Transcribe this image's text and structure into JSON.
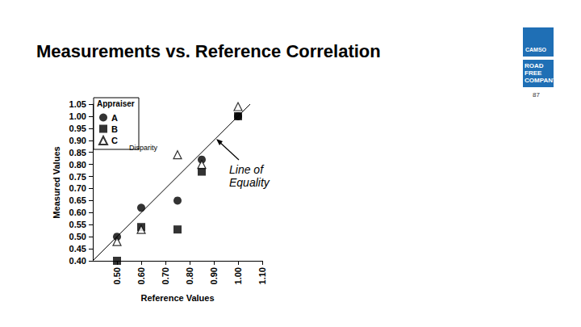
{
  "slide": {
    "title": "Measurements vs. Reference Correlation",
    "page": "87",
    "logo_texts": [
      "CAMSO",
      "ROAD FREE COMPANY"
    ]
  },
  "chart_data": {
    "type": "scatter",
    "x_label": "Reference Values",
    "y_label": "Measured Values",
    "legend_title": "Appraiser",
    "legend": "upper left",
    "grid": false,
    "x": [
      0.5,
      0.6,
      0.75,
      0.85,
      1.0
    ],
    "series": [
      {
        "name": "A",
        "color": "#000000",
        "marker": "circle",
        "values": [
          0.5,
          0.62,
          0.65,
          0.82,
          1.0
        ]
      },
      {
        "name": "B",
        "color": "#000000",
        "marker": "square",
        "values": [
          0.4,
          0.54,
          0.53,
          0.77,
          1.0
        ]
      },
      {
        "name": "C",
        "color": "#000000",
        "marker": "triangle-open",
        "values": [
          0.48,
          0.53,
          0.84,
          0.8,
          1.04
        ]
      }
    ],
    "annotations": [
      {
        "text": "Disparity"
      },
      {
        "text": "Line of\nEquality"
      }
    ],
    "xlim": [
      0.4,
      1.1
    ],
    "xticks": [
      {
        "value": 0.5,
        "label": "0.50"
      },
      {
        "value": 0.6,
        "label": "0.60"
      },
      {
        "value": 0.7,
        "label": "0.70"
      },
      {
        "value": 0.8,
        "label": "0.80"
      },
      {
        "value": 0.9,
        "label": "0.90"
      },
      {
        "value": 1.0,
        "label": "1.00"
      },
      {
        "value": 1.1,
        "label": "1.10"
      }
    ],
    "ylim": [
      0.4,
      1.05
    ],
    "yticks": [
      {
        "value": 0.4,
        "label": "0.40"
      },
      {
        "value": 0.45,
        "label": "0.45"
      },
      {
        "value": 0.5,
        "label": "0.50"
      },
      {
        "value": 0.55,
        "label": "0.55"
      },
      {
        "value": 0.6,
        "label": "0.60"
      },
      {
        "value": 0.65,
        "label": "0.65"
      },
      {
        "value": 0.7,
        "label": "0.70"
      },
      {
        "value": 0.75,
        "label": "0.75"
      },
      {
        "value": 0.8,
        "label": "0.80"
      },
      {
        "value": 0.85,
        "label": "0.85"
      },
      {
        "value": 0.9,
        "label": "0.90"
      },
      {
        "value": 0.95,
        "label": "0.95"
      },
      {
        "value": 1.0,
        "label": "1.00"
      },
      {
        "value": 1.05,
        "label": "1.05"
      }
    ]
  }
}
